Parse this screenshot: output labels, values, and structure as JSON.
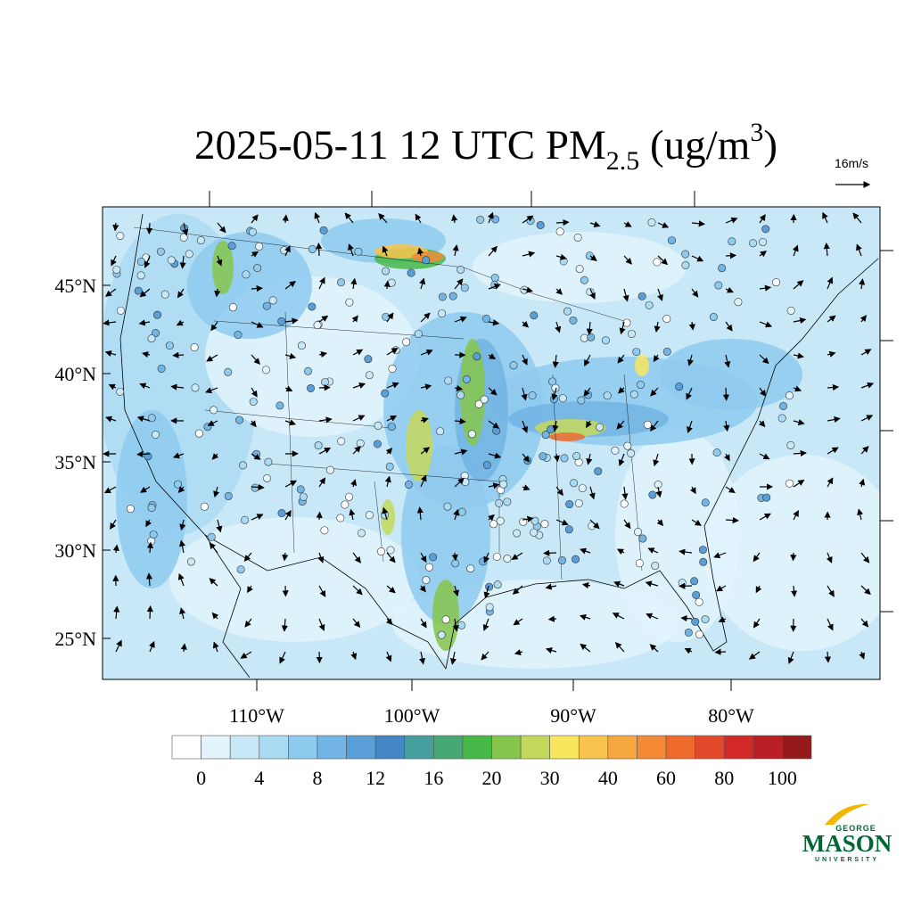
{
  "title": {
    "main": "2025-05-11 12 UTC PM",
    "sub": "2.5",
    "unit": " (ug/m",
    "sup": "3",
    "close": ")"
  },
  "wind_reference": "16m/s",
  "map": {
    "lat_labels": [
      "45°N",
      "40°N",
      "35°N",
      "30°N",
      "25°N"
    ],
    "lon_labels": [
      "110°W",
      "100°W",
      "90°W",
      "80°W"
    ]
  },
  "colorbar": {
    "colors": [
      "#ffffff",
      "#e2f3fb",
      "#c8e8f8",
      "#abdaf3",
      "#8ecaee",
      "#72b4e3",
      "#5a9ed7",
      "#4286c5",
      "#469e9e",
      "#46a874",
      "#46b848",
      "#86c54b",
      "#c4d85c",
      "#f8e55e",
      "#f8c44e",
      "#f7a73f",
      "#f48a36",
      "#ed6a2c",
      "#e2482a",
      "#d32a29",
      "#bb1f26",
      "#961a1c"
    ],
    "levels": [
      0,
      4,
      8,
      12,
      16,
      20,
      30,
      40,
      60,
      80,
      100
    ]
  },
  "logo": {
    "top": "GEORGE",
    "main": "MASON",
    "bottom": "UNIVERSITY"
  }
}
